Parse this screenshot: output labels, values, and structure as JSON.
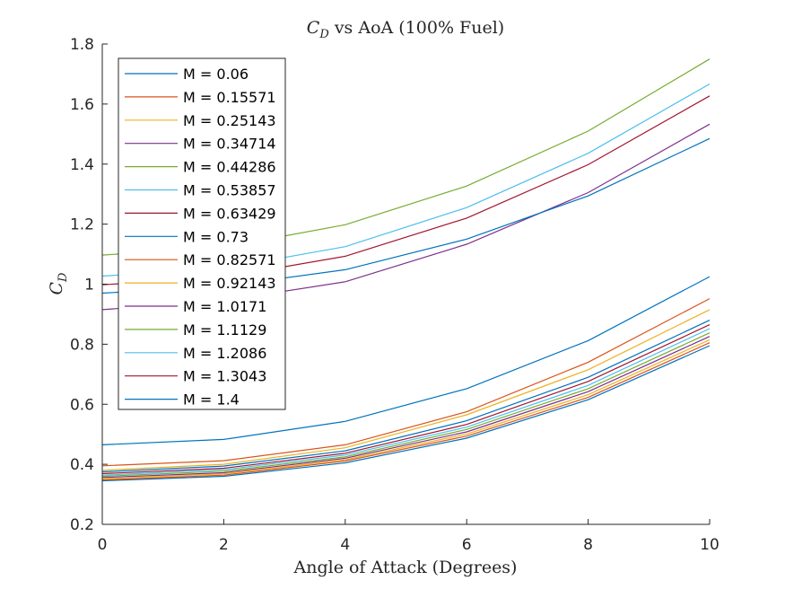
{
  "chart_data": {
    "type": "line",
    "title": "C_D vs AoA (100% Fuel)",
    "title_main": "C",
    "title_sub": "D",
    "title_rest": " vs AoA (100% Fuel)",
    "xlabel": "Angle of Attack (Degrees)",
    "ylabel_main": "C",
    "ylabel_sub": "D",
    "xlim": [
      0,
      10
    ],
    "ylim": [
      0.2,
      1.8
    ],
    "xticks": [
      0,
      2,
      4,
      6,
      8,
      10
    ],
    "yticks": [
      0.2,
      0.4,
      0.6,
      0.8,
      1,
      1.2,
      1.4,
      1.6,
      1.8
    ],
    "ytick_labels": [
      "0.2",
      "0.4",
      "0.6",
      "0.8",
      "1",
      "1.2",
      "1.4",
      "1.6",
      "1.8"
    ],
    "grid": false,
    "legend_position": "top-left",
    "x": [
      0,
      2,
      4,
      6,
      8,
      10
    ],
    "series": [
      {
        "name": "M = 0.06",
        "color": "#0072BD",
        "values": [
          0.345,
          0.36,
          0.405,
          0.487,
          0.615,
          0.795
        ]
      },
      {
        "name": "M = 0.15571",
        "color": "#D95319",
        "values": [
          0.348,
          0.364,
          0.411,
          0.494,
          0.623,
          0.805
        ]
      },
      {
        "name": "M = 0.25143",
        "color": "#EDB120",
        "values": [
          0.352,
          0.368,
          0.415,
          0.501,
          0.632,
          0.815
        ]
      },
      {
        "name": "M = 0.34714",
        "color": "#7E2F8E",
        "values": [
          0.356,
          0.372,
          0.42,
          0.508,
          0.642,
          0.826
        ]
      },
      {
        "name": "M = 0.44286",
        "color": "#77AC30",
        "values": [
          0.36,
          0.377,
          0.425,
          0.516,
          0.652,
          0.838
        ]
      },
      {
        "name": "M = 0.53857",
        "color": "#4DBEEE",
        "values": [
          0.364,
          0.382,
          0.431,
          0.524,
          0.663,
          0.852
        ]
      },
      {
        "name": "M = 0.63429",
        "color": "#A2142F",
        "values": [
          0.369,
          0.387,
          0.437,
          0.533,
          0.676,
          0.865
        ]
      },
      {
        "name": "M = 0.73",
        "color": "#0072BD",
        "values": [
          0.375,
          0.394,
          0.445,
          0.545,
          0.69,
          0.88
        ]
      },
      {
        "name": "M = 0.82571",
        "color": "#D95319",
        "values": [
          0.395,
          0.412,
          0.465,
          0.575,
          0.74,
          0.952
        ]
      },
      {
        "name": "M = 0.92143",
        "color": "#EDB120",
        "values": [
          0.38,
          0.4,
          0.455,
          0.565,
          0.715,
          0.915
        ]
      },
      {
        "name": "M = 1.0171",
        "color": "#7E2F8E",
        "values": [
          0.915,
          0.945,
          1.008,
          1.133,
          1.305,
          1.533
        ]
      },
      {
        "name": "M = 1.1129",
        "color": "#77AC30",
        "values": [
          1.097,
          1.123,
          1.198,
          1.327,
          1.51,
          1.75
        ]
      },
      {
        "name": "M = 1.2086",
        "color": "#4DBEEE",
        "values": [
          1.027,
          1.053,
          1.125,
          1.255,
          1.436,
          1.667
        ]
      },
      {
        "name": "M = 1.3043",
        "color": "#A2142F",
        "values": [
          0.998,
          1.023,
          1.093,
          1.22,
          1.398,
          1.627
        ]
      },
      {
        "name": "M = 1.4",
        "color": "#0072BD",
        "values": [
          0.97,
          0.993,
          1.048,
          1.15,
          1.294,
          1.485
        ]
      }
    ],
    "extra_series_lines": [
      {
        "color": "#0072BD",
        "values": [
          0.465,
          0.483,
          0.543,
          0.652,
          0.812,
          1.025
        ]
      }
    ]
  }
}
